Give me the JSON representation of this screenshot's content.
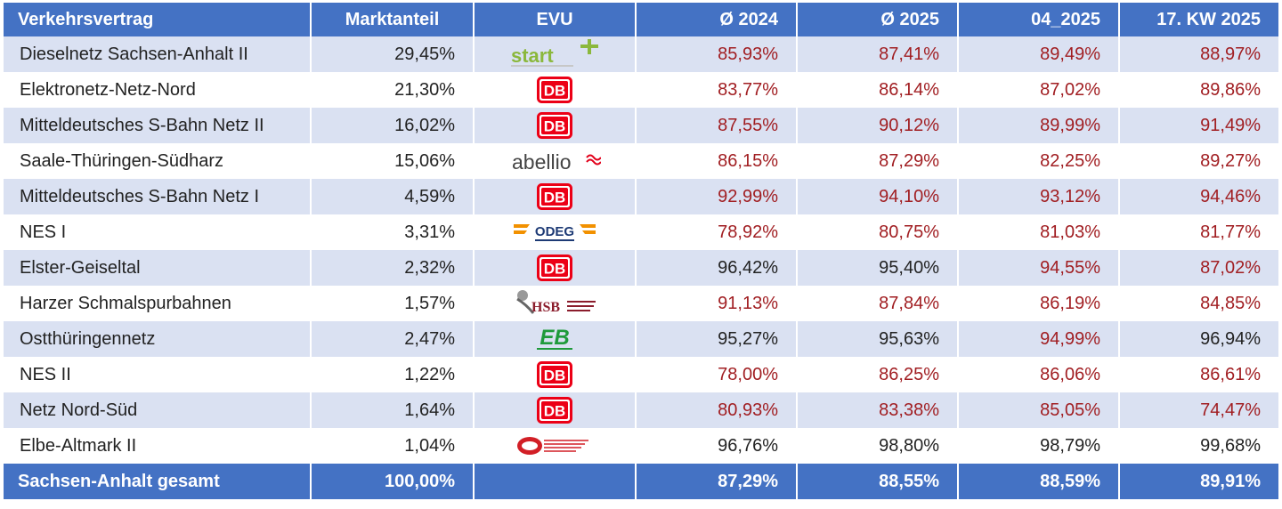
{
  "headers": [
    "Verkehrsvertrag",
    "Marktanteil",
    "EVU",
    "Ø 2024",
    "Ø 2025",
    "04_2025",
    "17. KW 2025"
  ],
  "rows": [
    {
      "name": "Dieselnetz Sachsen-Anhalt II",
      "share": "29,45%",
      "evu": "start",
      "v": [
        "85,93%",
        "87,41%",
        "89,49%",
        "88,97%"
      ],
      "c": [
        "red",
        "red",
        "red",
        "red"
      ]
    },
    {
      "name": "Elektronetz-Netz-Nord",
      "share": "21,30%",
      "evu": "db",
      "v": [
        "83,77%",
        "86,14%",
        "87,02%",
        "89,86%"
      ],
      "c": [
        "red",
        "red",
        "red",
        "red"
      ]
    },
    {
      "name": "Mitteldeutsches S-Bahn Netz II",
      "share": "16,02%",
      "evu": "db",
      "v": [
        "87,55%",
        "90,12%",
        "89,99%",
        "91,49%"
      ],
      "c": [
        "red",
        "red",
        "red",
        "red"
      ]
    },
    {
      "name": "Saale-Thüringen-Südharz",
      "share": "15,06%",
      "evu": "abellio",
      "v": [
        "86,15%",
        "87,29%",
        "82,25%",
        "89,27%"
      ],
      "c": [
        "red",
        "red",
        "red",
        "red"
      ]
    },
    {
      "name": "Mitteldeutsches S-Bahn Netz I",
      "share": "4,59%",
      "evu": "db",
      "v": [
        "92,99%",
        "94,10%",
        "93,12%",
        "94,46%"
      ],
      "c": [
        "red",
        "red",
        "red",
        "red"
      ]
    },
    {
      "name": "NES I",
      "share": "3,31%",
      "evu": "odeg",
      "v": [
        "78,92%",
        "80,75%",
        "81,03%",
        "81,77%"
      ],
      "c": [
        "red",
        "red",
        "red",
        "red"
      ]
    },
    {
      "name": "Elster-Geiseltal",
      "share": "2,32%",
      "evu": "db",
      "v": [
        "96,42%",
        "95,40%",
        "94,55%",
        "87,02%"
      ],
      "c": [
        "blk",
        "blk",
        "red",
        "red"
      ]
    },
    {
      "name": "Harzer Schmalspurbahnen",
      "share": "1,57%",
      "evu": "hsb",
      "v": [
        "91,13%",
        "87,84%",
        "86,19%",
        "84,85%"
      ],
      "c": [
        "red",
        "red",
        "red",
        "red"
      ]
    },
    {
      "name": "Ostthüringennetz",
      "share": "2,47%",
      "evu": "eb",
      "v": [
        "95,27%",
        "95,63%",
        "94,99%",
        "96,94%"
      ],
      "c": [
        "blk",
        "blk",
        "red",
        "blk"
      ]
    },
    {
      "name": "NES II",
      "share": "1,22%",
      "evu": "db",
      "v": [
        "78,00%",
        "86,25%",
        "86,06%",
        "86,61%"
      ],
      "c": [
        "red",
        "red",
        "red",
        "red"
      ]
    },
    {
      "name": "Netz Nord-Süd",
      "share": "1,64%",
      "evu": "db",
      "v": [
        "80,93%",
        "83,38%",
        "85,05%",
        "74,47%"
      ],
      "c": [
        "red",
        "red",
        "red",
        "red"
      ]
    },
    {
      "name": "Elbe-Altmark II",
      "share": "1,04%",
      "evu": "hans",
      "v": [
        "96,76%",
        "98,80%",
        "98,79%",
        "99,68%"
      ],
      "c": [
        "blk",
        "blk",
        "blk",
        "blk"
      ]
    }
  ],
  "total": {
    "name": "Sachsen-Anhalt gesamt",
    "share": "100,00%",
    "v": [
      "87,29%",
      "88,55%",
      "88,59%",
      "89,91%"
    ]
  },
  "logo_text": {
    "db": "DB",
    "start": "start",
    "abellio": "abellio",
    "odeg": "ODEG",
    "hsb": "HSB",
    "eb": "EB"
  },
  "colors": {
    "header": "#4472c4",
    "stripe": "#dae1f2",
    "red": "#a11e22",
    "db_red": "#ec0016"
  }
}
